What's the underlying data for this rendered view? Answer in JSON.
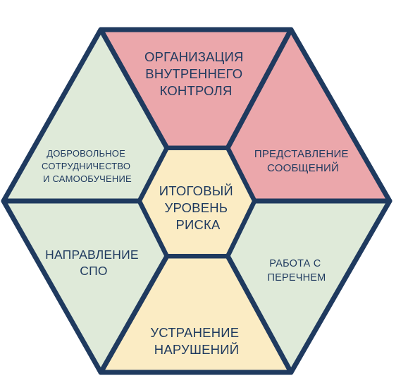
{
  "colors": {
    "outline": "#1f3a5f",
    "text": "#1f3a5f",
    "green": "#dfead9",
    "pink": "#eba7ab",
    "cream": "#fbecc4",
    "center": "#fbecc4"
  },
  "segments": {
    "top": {
      "lines": [
        "ОРГАНИЗАЦИЯ",
        "ВНУТРЕННЕГО",
        "КОНТРОЛЯ"
      ],
      "color": "pink"
    },
    "upper_right": {
      "lines": [
        "ПРЕДСТАВЛЕНИЕ",
        "СООБЩЕНИЙ"
      ],
      "color": "pink"
    },
    "lower_right": {
      "lines": [
        "РАБОТА С",
        "ПЕРЕЧНЕМ"
      ],
      "color": "green"
    },
    "bottom": {
      "lines": [
        "УСТРАНЕНИЕ",
        "НАРУШЕНИЙ"
      ],
      "color": "cream"
    },
    "lower_left": {
      "lines": [
        "НАПРАВЛЕНИЕ",
        "СПО"
      ],
      "color": "green"
    },
    "upper_left": {
      "lines": [
        "ДОБРОВОЛЬНОЕ",
        "СОТРУДНИЧЕСТВО",
        "И САМООБУЧЕНИЕ"
      ],
      "color": "green"
    }
  },
  "center": {
    "lines": [
      "ИТОГОВЫЙ",
      "УРОВЕНЬ",
      "РИСКА"
    ],
    "color": "center"
  }
}
